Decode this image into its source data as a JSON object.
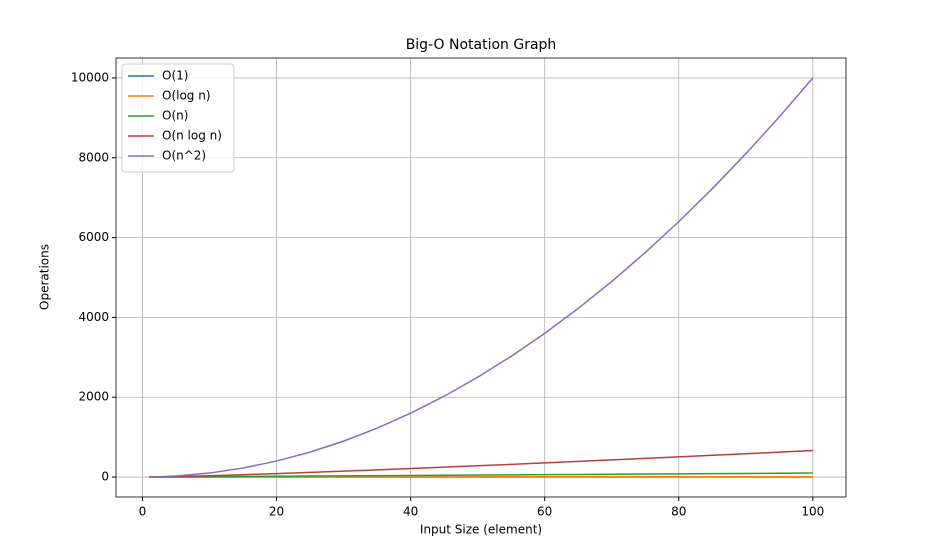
{
  "chart_data": {
    "type": "line",
    "title": "Big-O Notation Graph",
    "x_label": "Input Size (element)",
    "y_label": "Operations",
    "x": [
      1,
      5,
      10,
      15,
      20,
      25,
      30,
      35,
      40,
      45,
      50,
      55,
      60,
      65,
      70,
      75,
      80,
      85,
      90,
      95,
      100
    ],
    "series": [
      {
        "name": "O(1)",
        "color": "#1f77b4",
        "values": [
          1,
          1,
          1,
          1,
          1,
          1,
          1,
          1,
          1,
          1,
          1,
          1,
          1,
          1,
          1,
          1,
          1,
          1,
          1,
          1,
          1
        ]
      },
      {
        "name": "O(log n)",
        "color": "#ff7f0e",
        "values": [
          0,
          2.32,
          3.32,
          3.91,
          4.32,
          4.64,
          4.91,
          5.13,
          5.32,
          5.49,
          5.64,
          5.78,
          5.91,
          6.02,
          6.13,
          6.23,
          6.32,
          6.41,
          6.49,
          6.57,
          6.64
        ]
      },
      {
        "name": "O(n)",
        "color": "#2ca02c",
        "values": [
          1,
          5,
          10,
          15,
          20,
          25,
          30,
          35,
          40,
          45,
          50,
          55,
          60,
          65,
          70,
          75,
          80,
          85,
          90,
          95,
          100
        ]
      },
      {
        "name": "O(n log n)",
        "color": "#b5413a",
        "values": [
          0,
          11.6,
          33.2,
          58.6,
          86.4,
          116.1,
          147.2,
          179.5,
          212.9,
          247.1,
          282.2,
          318.0,
          354.4,
          391.5,
          429.1,
          467.1,
          505.8,
          544.8,
          584.3,
          624.1,
          664.4
        ]
      },
      {
        "name": "O(n^2)",
        "color": "#8c6bbf",
        "values": [
          1,
          25,
          100,
          225,
          400,
          625,
          900,
          1225,
          1600,
          2025,
          2500,
          3025,
          3600,
          4225,
          4900,
          5625,
          6400,
          7225,
          8100,
          9025,
          10000
        ]
      }
    ],
    "xlim": [
      -3.95,
      104.95
    ],
    "ylim": [
      -500,
      10500
    ],
    "xticks": [
      0,
      20,
      40,
      60,
      80,
      100
    ],
    "yticks": [
      0,
      2000,
      4000,
      6000,
      8000,
      10000
    ],
    "grid": true,
    "legend_position": "upper-left"
  }
}
